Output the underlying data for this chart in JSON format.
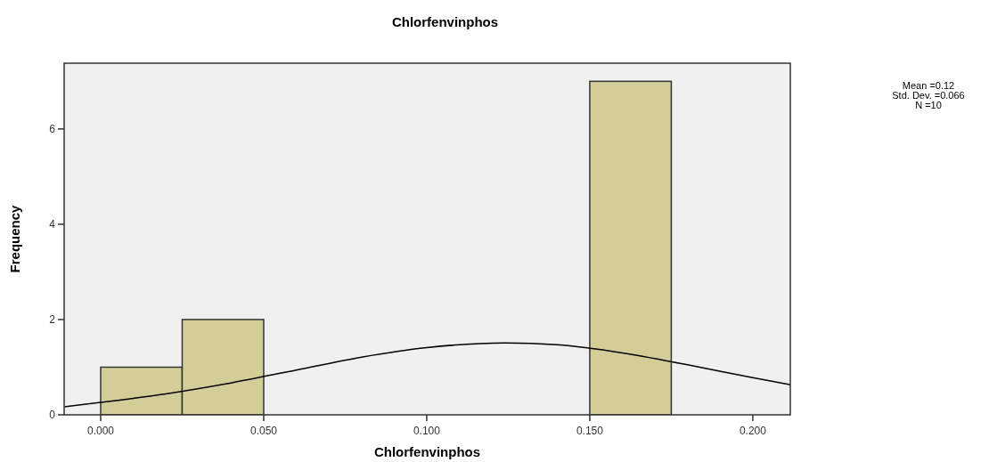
{
  "chart_data": {
    "type": "histogram",
    "title": "Chlorfenvinphos",
    "xlabel": "Chlorfenvinphos",
    "ylabel": "Frequency",
    "bins": [
      0,
      0.025,
      0.05,
      0.075,
      0.1,
      0.125,
      0.15,
      0.175
    ],
    "values": [
      1,
      2,
      0,
      0,
      0,
      0,
      7
    ],
    "color": "#d3ce97",
    "series": [
      {
        "type": "line",
        "color": "#000000",
        "x": [
          -0.011,
          0,
          0.02,
          0.04,
          0.06,
          0.08,
          0.1,
          0.124,
          0.14,
          0.16,
          0.18,
          0.2,
          0.2115
        ],
        "values": [
          0.17,
          0.26,
          0.44,
          0.67,
          0.94,
          1.21,
          1.41,
          1.51,
          1.47,
          1.3,
          1.05,
          0.78,
          0.63
        ]
      }
    ],
    "xlim": [
      -0.0112,
      0.2115
    ],
    "ylim": [
      0,
      7.38
    ],
    "xticks": [
      {
        "value": 0,
        "label": "0.000"
      },
      {
        "value": 0.05,
        "label": "0.050"
      },
      {
        "value": 0.1,
        "label": "0.100"
      },
      {
        "value": 0.15,
        "label": "0.150"
      },
      {
        "value": 0.2,
        "label": "0.200"
      }
    ],
    "yticks": [
      0,
      2,
      4,
      6
    ],
    "grid": false,
    "annotations": [
      "Mean =0.12",
      "Std. Dev. =0.066",
      "N =10"
    ]
  }
}
